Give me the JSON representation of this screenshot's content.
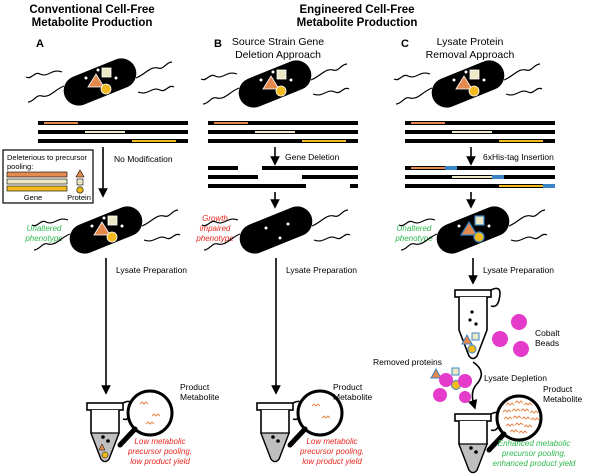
{
  "headers": {
    "conventional_line1": "Conventional Cell-Free",
    "conventional_line2": "Metabolite Production",
    "engineered_line1": "Engineered Cell-Free",
    "engineered_line2": "Metabolite Production"
  },
  "panels": [
    {
      "letter": "A",
      "title_line1": "",
      "title_line2": "",
      "step1_label": "No Modification",
      "phenotype_line1": "Unaltered",
      "phenotype_line2": "phenotype",
      "phenotype_line3": "",
      "step2_label": "Lysate Preparation",
      "product_line1": "Product",
      "product_line2": "Metabolite",
      "outcome_line1": "Low metabolic",
      "outcome_line2": "precursor pooling,",
      "outcome_line3": "low product yield"
    },
    {
      "letter": "B",
      "title_line1": "Source Strain Gene",
      "title_line2": "Deletion Approach",
      "step1_label": "Gene Deletion",
      "phenotype_line1": "Growth",
      "phenotype_line2": "impaired",
      "phenotype_line3": "phenotype",
      "step2_label": "Lysate Preparation",
      "product_line1": "Product",
      "product_line2": "Metabolite",
      "outcome_line1": "Low metabolic",
      "outcome_line2": "precursor pooling,",
      "outcome_line3": "low product yield"
    },
    {
      "letter": "C",
      "title_line1": "Lysate Protein",
      "title_line2": "Removal Approach",
      "step1_label": "6xHis-tag  Insertion",
      "phenotype_line1": "Unaltered",
      "phenotype_line2": "phenotype",
      "phenotype_line3": "",
      "step2_label": "Lysate Preparation",
      "beads_line1": "Cobalt",
      "beads_line2": "Beads",
      "removed_label": "Removed  proteins",
      "step3_label": "Lysate Depletion",
      "product_line1": "Product",
      "product_line2": "Metabolite",
      "outcome_line1": "Enhanced metabolic",
      "outcome_line2": "precursor pooling,",
      "outcome_line3": "enhanced product yield"
    }
  ],
  "legend": {
    "title_line1": "Deleterious to precursor",
    "title_line2": "pooling:",
    "gene_label": "Gene",
    "protein_label": "Protein"
  },
  "colors": {
    "orange_gene": "#e58a4f",
    "beige_gene": "#ece8c6",
    "yellow_gene": "#f3ba1f",
    "his_tag": "#3b84c6",
    "cobalt_bead": "#e43bcb",
    "green_text": "#2db84d",
    "red_text": "#e8261f"
  },
  "icons": [
    "bacterium-icon",
    "microcentrifuge-tube-icon",
    "magnifier-icon",
    "cobalt-bead-icon",
    "triangle-protein-icon",
    "square-protein-icon",
    "circle-protein-icon"
  ]
}
